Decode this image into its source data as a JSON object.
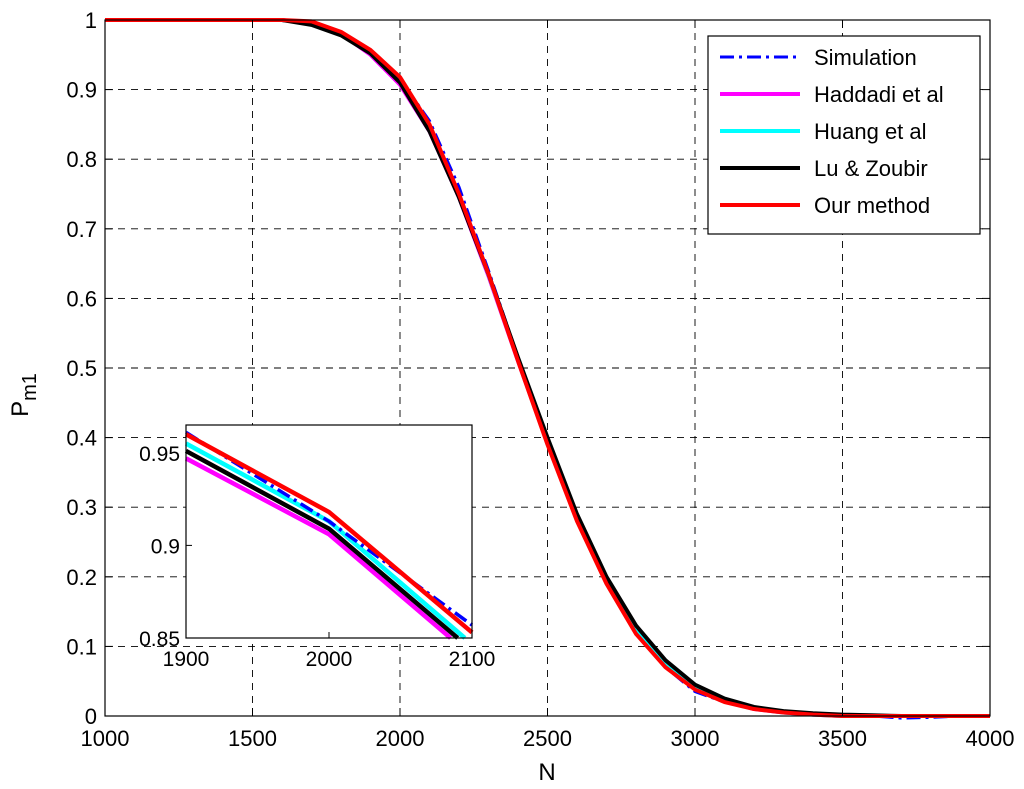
{
  "chart_data": [
    {
      "type": "line",
      "title": "",
      "xlabel": "N",
      "ylabel": "P",
      "ylabel_subscript": "m1",
      "xlim": [
        1000,
        4000
      ],
      "ylim": [
        0,
        1
      ],
      "grid": true,
      "legend_position": "top-right",
      "x_ticks": [
        1000,
        1500,
        2000,
        2500,
        3000,
        3500,
        4000
      ],
      "y_ticks": [
        0,
        0.1,
        0.2,
        0.3,
        0.4,
        0.5,
        0.6,
        0.7,
        0.8,
        0.9,
        1
      ],
      "x_tick_labels": [
        "1000",
        "1500",
        "2000",
        "2500",
        "3000",
        "3500",
        "4000"
      ],
      "y_tick_labels": [
        "0",
        "0.1",
        "0.2",
        "0.3",
        "0.4",
        "0.5",
        "0.6",
        "0.7",
        "0.8",
        "0.9",
        "1"
      ],
      "x": [
        1000,
        1100,
        1200,
        1300,
        1400,
        1500,
        1600,
        1700,
        1800,
        1900,
        2000,
        2100,
        2200,
        2300,
        2400,
        2500,
        2600,
        2700,
        2800,
        2900,
        3000,
        3100,
        3200,
        3300,
        3400,
        3500,
        3600,
        3700,
        3800,
        3900,
        4000
      ],
      "series": [
        {
          "name": "Simulation",
          "color": "#0000ff",
          "style": "dashdot",
          "values": [
            1,
            1,
            1,
            1,
            1,
            1,
            1,
            0.995,
            0.98,
            0.955,
            0.915,
            0.855,
            0.76,
            0.64,
            0.515,
            0.395,
            0.285,
            0.195,
            0.12,
            0.07,
            0.035,
            0.02,
            0.01,
            0.005,
            0.003,
            0,
            0,
            -0.003,
            -0.002,
            0,
            0
          ]
        },
        {
          "name": "Haddadi et al",
          "color": "#ff00ff",
          "style": "solid",
          "values": [
            1,
            1,
            1,
            1,
            1,
            1,
            1,
            0.995,
            0.98,
            0.95,
            0.907,
            0.84,
            0.745,
            0.632,
            0.51,
            0.392,
            0.285,
            0.195,
            0.125,
            0.075,
            0.04,
            0.022,
            0.01,
            0.005,
            0.002,
            0,
            0,
            0,
            0,
            0,
            0
          ]
        },
        {
          "name": "Huang et al",
          "color": "#00ffff",
          "style": "solid",
          "values": [
            1,
            1,
            1,
            1,
            1,
            1,
            1,
            0.995,
            0.98,
            0.955,
            0.913,
            0.845,
            0.748,
            0.634,
            0.512,
            0.393,
            0.285,
            0.195,
            0.125,
            0.075,
            0.04,
            0.022,
            0.011,
            0.005,
            0.002,
            0,
            0,
            0,
            0,
            0,
            0
          ]
        },
        {
          "name": "Lu & Zoubir",
          "color": "#000000",
          "style": "solid",
          "values": [
            1,
            1,
            1,
            1,
            1,
            1,
            1,
            0.993,
            0.978,
            0.952,
            0.91,
            0.84,
            0.745,
            0.635,
            0.515,
            0.4,
            0.29,
            0.2,
            0.13,
            0.08,
            0.045,
            0.025,
            0.013,
            0.007,
            0.004,
            0.002,
            0.001,
            0,
            0,
            0,
            0
          ]
        },
        {
          "name": "Our method",
          "color": "#ff0000",
          "style": "solid",
          "values": [
            1,
            1,
            1,
            1,
            1,
            1,
            1,
            0.998,
            0.983,
            0.957,
            0.918,
            0.85,
            0.75,
            0.635,
            0.51,
            0.39,
            0.28,
            0.19,
            0.118,
            0.07,
            0.038,
            0.02,
            0.01,
            0.005,
            0.002,
            0,
            0,
            0,
            0,
            0,
            0
          ]
        }
      ]
    },
    {
      "type": "line",
      "title": "",
      "inset": true,
      "xlim": [
        1900,
        2100
      ],
      "ylim": [
        0.85,
        0.965
      ],
      "grid": false,
      "x_ticks": [
        1900,
        2000,
        2100
      ],
      "y_ticks": [
        0.85,
        0.9,
        0.95
      ],
      "x_tick_labels": [
        "1900",
        "2000",
        "2100"
      ],
      "y_tick_labels": [
        "0.85",
        "0.9",
        "0.95"
      ],
      "series": [
        {
          "name": "Simulation",
          "color": "#0000ff",
          "style": "dashdot",
          "x": [
            1900,
            2000,
            2100
          ],
          "values": [
            0.961,
            0.913,
            0.857
          ]
        },
        {
          "name": "Haddadi et al",
          "color": "#ff00ff",
          "style": "solid",
          "x": [
            1900,
            2000,
            2085
          ],
          "values": [
            0.947,
            0.906,
            0.85
          ]
        },
        {
          "name": "Huang et al",
          "color": "#00ffff",
          "style": "solid",
          "x": [
            1900,
            2000,
            2095
          ],
          "values": [
            0.955,
            0.913,
            0.85
          ]
        },
        {
          "name": "Lu & Zoubir",
          "color": "#000000",
          "style": "solid",
          "x": [
            1900,
            2000,
            2090
          ],
          "values": [
            0.951,
            0.909,
            0.85
          ]
        },
        {
          "name": "Our method",
          "color": "#ff0000",
          "style": "solid",
          "x": [
            1900,
            2000,
            2100
          ],
          "values": [
            0.96,
            0.918,
            0.853
          ]
        }
      ]
    }
  ]
}
